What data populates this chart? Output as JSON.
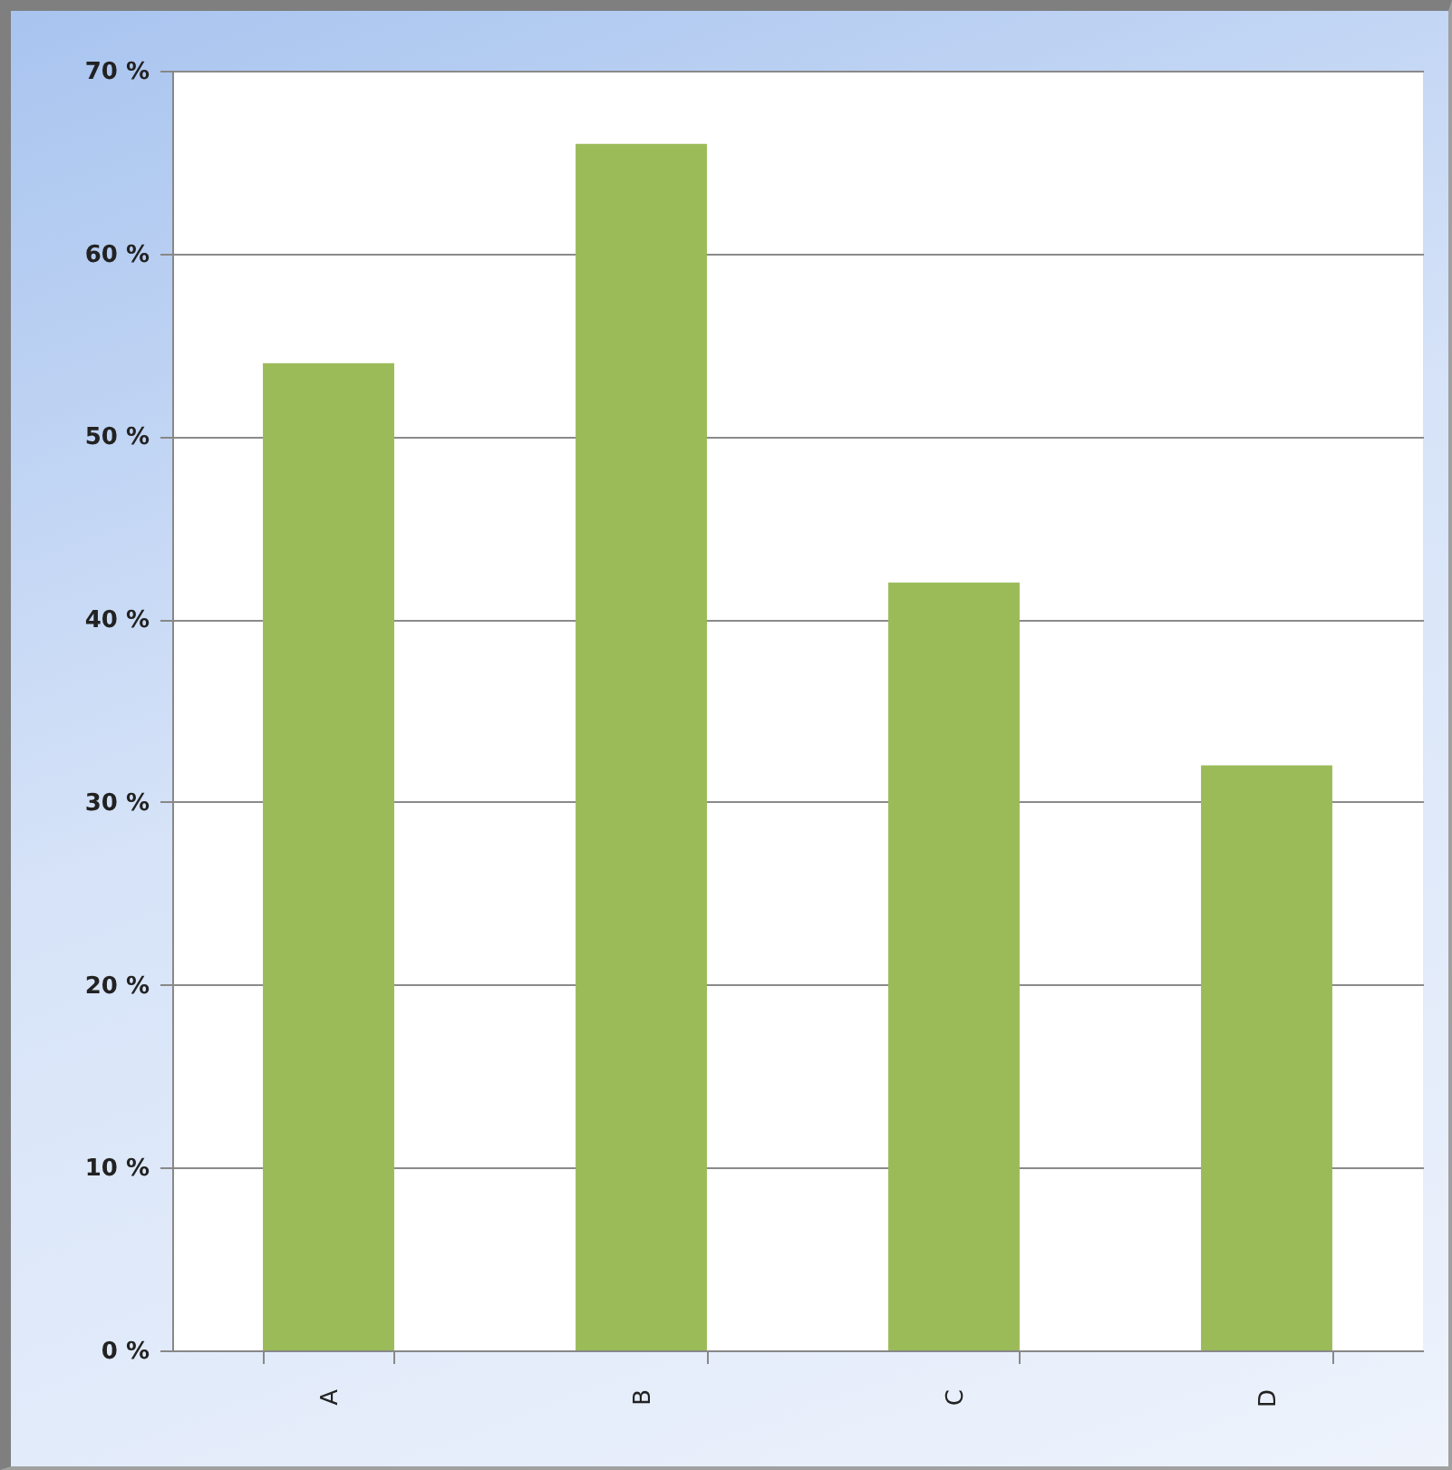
{
  "chart_data": {
    "type": "bar",
    "categories": [
      "A",
      "B",
      "C",
      "D"
    ],
    "values": [
      54,
      66,
      42,
      32
    ],
    "color": "#9bbb59",
    "ylim": [
      0,
      70
    ],
    "yticks": [
      {
        "value": 0,
        "label": "0 %"
      },
      {
        "value": 10,
        "label": "10 %"
      },
      {
        "value": 20,
        "label": "20 %"
      },
      {
        "value": 30,
        "label": "30 %"
      },
      {
        "value": 40,
        "label": "40 %"
      },
      {
        "value": 50,
        "label": "50 %"
      },
      {
        "value": 60,
        "label": "60 %"
      },
      {
        "value": 70,
        "label": "70 %"
      }
    ],
    "grid": "y"
  }
}
